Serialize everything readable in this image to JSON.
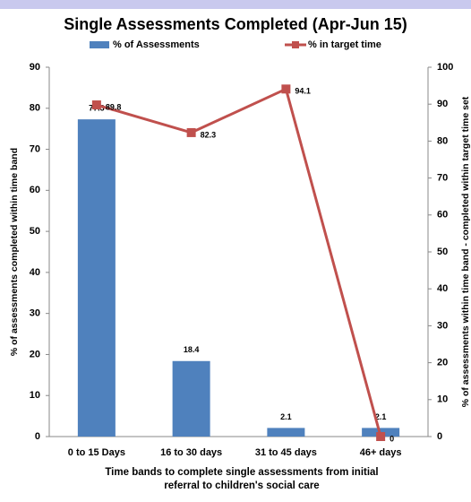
{
  "chart_data": {
    "type": "bar_line",
    "title": "Single Assessments Completed (Apr-Jun 15)",
    "categories": [
      "0 to 15 Days",
      "16 to 30 days",
      "31 to 45 days",
      "46+ days"
    ],
    "series": [
      {
        "name": "% of Assessments",
        "color": "#4f81bd",
        "type": "bar",
        "values": [
          77.3,
          18.4,
          2.1,
          2.1
        ]
      },
      {
        "name": "% in target time",
        "color": "#c0504d",
        "type": "line",
        "axis": "y2",
        "values": [
          89.8,
          82.3,
          94.1,
          0
        ]
      }
    ],
    "ylim": [
      0,
      90
    ],
    "yticks": [
      0,
      10,
      20,
      30,
      40,
      50,
      60,
      70,
      80,
      90
    ],
    "y2lim": [
      0,
      100
    ],
    "y2ticks": [
      0,
      10,
      20,
      30,
      40,
      50,
      60,
      70,
      80,
      90,
      100
    ],
    "ylabel": "% of assessments completed within time band",
    "y2label": "% of assessments within time band - completed within target time set",
    "xlabel": "Time bands to complete single assessments from initial referral to children's social care",
    "grid": false
  }
}
